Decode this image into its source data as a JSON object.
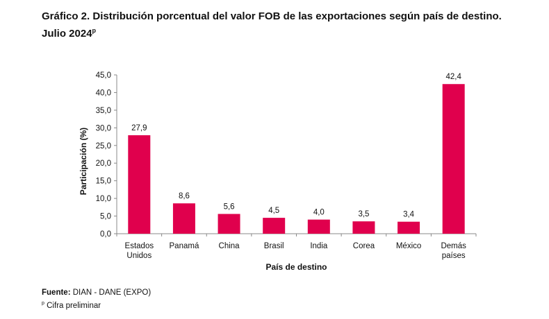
{
  "title": {
    "line1": "Gráfico 2. Distribución porcentual del valor FOB de las exportaciones según país de destino.",
    "line2": "Julio 2024",
    "superscript": "p"
  },
  "footer": {
    "source_label": "Fuente:",
    "source_text": " DIAN - DANE (EXPO)",
    "note_mark": "p",
    "note_text": " Cifra preliminar"
  },
  "chart_data": {
    "type": "bar",
    "xlabel": "País de destino",
    "ylabel": "Participación (%)",
    "ylim": [
      0,
      45
    ],
    "yticks": [
      "0,0",
      "5,0",
      "10,0",
      "15,0",
      "20,0",
      "25,0",
      "30,0",
      "35,0",
      "40,0",
      "45,0"
    ],
    "categories": [
      [
        "Estados",
        "Unidos"
      ],
      [
        "Panamá"
      ],
      [
        "China"
      ],
      [
        "Brasil"
      ],
      [
        "India"
      ],
      [
        "Corea"
      ],
      [
        "México"
      ],
      [
        "Demás",
        "países"
      ]
    ],
    "values": [
      27.9,
      8.6,
      5.6,
      4.5,
      4.0,
      3.5,
      3.4,
      42.4
    ],
    "data_labels": [
      "27,9",
      "8,6",
      "5,6",
      "4,5",
      "4,0",
      "3,5",
      "3,4",
      "42,4"
    ],
    "bar_color": "#E0004D",
    "grid": false,
    "legend": "none"
  }
}
